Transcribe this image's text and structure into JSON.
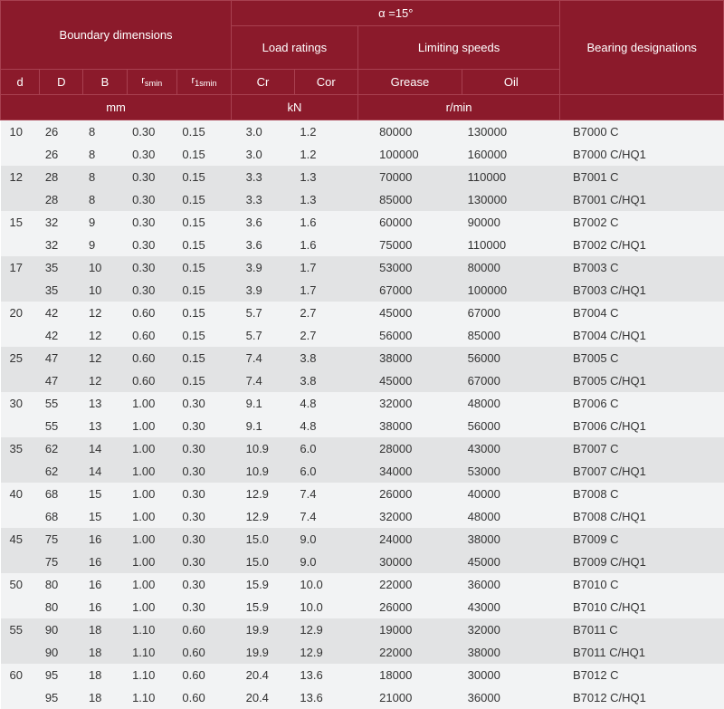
{
  "header": {
    "boundary": "Boundary dimensions",
    "alpha": "α =15°",
    "load": "Load ratings",
    "limit": "Limiting speeds",
    "designations": "Bearing designations",
    "d": "d",
    "D": "D",
    "B": "B",
    "rsmin": "rsmin",
    "r1smin": "r1smin",
    "cr": "Cr",
    "cor": "Cor",
    "grease": "Grease",
    "oil": "Oil",
    "mm": "mm",
    "kN": "kN",
    "rmin": "r/min"
  },
  "rows": [
    {
      "cls": "even",
      "d": "10",
      "D": "26",
      "B": "8",
      "r1": "0.30",
      "r2": "0.15",
      "cr": "3.0",
      "cor": "1.2",
      "gr": "80000",
      "oil": "130000",
      "des": "B7000 C"
    },
    {
      "cls": "even",
      "d": "",
      "D": "26",
      "B": "8",
      "r1": "0.30",
      "r2": "0.15",
      "cr": "3.0",
      "cor": "1.2",
      "gr": "100000",
      "oil": "160000",
      "des": "B7000  C/HQ1"
    },
    {
      "cls": "odd",
      "d": "12",
      "D": "28",
      "B": "8",
      "r1": "0.30",
      "r2": "0.15",
      "cr": "3.3",
      "cor": "1.3",
      "gr": "70000",
      "oil": "110000",
      "des": "B7001 C"
    },
    {
      "cls": "odd",
      "d": "",
      "D": "28",
      "B": "8",
      "r1": "0.30",
      "r2": "0.15",
      "cr": "3.3",
      "cor": "1.3",
      "gr": "85000",
      "oil": "130000",
      "des": "B7001  C/HQ1"
    },
    {
      "cls": "even",
      "d": "15",
      "D": "32",
      "B": "9",
      "r1": "0.30",
      "r2": "0.15",
      "cr": "3.6",
      "cor": "1.6",
      "gr": "60000",
      "oil": "90000",
      "des": "B7002 C"
    },
    {
      "cls": "even",
      "d": "",
      "D": "32",
      "B": "9",
      "r1": "0.30",
      "r2": "0.15",
      "cr": "3.6",
      "cor": "1.6",
      "gr": "75000",
      "oil": "110000",
      "des": "B7002  C/HQ1"
    },
    {
      "cls": "odd",
      "d": "17",
      "D": "35",
      "B": "10",
      "r1": "0.30",
      "r2": "0.15",
      "cr": "3.9",
      "cor": "1.7",
      "gr": "53000",
      "oil": "80000",
      "des": "B7003 C"
    },
    {
      "cls": "odd",
      "d": "",
      "D": "35",
      "B": "10",
      "r1": "0.30",
      "r2": "0.15",
      "cr": "3.9",
      "cor": "1.7",
      "gr": "67000",
      "oil": "100000",
      "des": "B7003  C/HQ1"
    },
    {
      "cls": "even",
      "d": "20",
      "D": "42",
      "B": "12",
      "r1": "0.60",
      "r2": "0.15",
      "cr": "5.7",
      "cor": "2.7",
      "gr": "45000",
      "oil": "67000",
      "des": "B7004 C"
    },
    {
      "cls": "even",
      "d": "",
      "D": "42",
      "B": "12",
      "r1": "0.60",
      "r2": "0.15",
      "cr": "5.7",
      "cor": "2.7",
      "gr": "56000",
      "oil": "85000",
      "des": "B7004  C/HQ1"
    },
    {
      "cls": "odd",
      "d": "25",
      "D": "47",
      "B": "12",
      "r1": "0.60",
      "r2": "0.15",
      "cr": "7.4",
      "cor": "3.8",
      "gr": "38000",
      "oil": "56000",
      "des": "B7005 C"
    },
    {
      "cls": "odd",
      "d": "",
      "D": "47",
      "B": "12",
      "r1": "0.60",
      "r2": "0.15",
      "cr": "7.4",
      "cor": "3.8",
      "gr": "45000",
      "oil": "67000",
      "des": "B7005  C/HQ1"
    },
    {
      "cls": "even",
      "d": "30",
      "D": "55",
      "B": "13",
      "r1": "1.00",
      "r2": "0.30",
      "cr": "9.1",
      "cor": "4.8",
      "gr": "32000",
      "oil": "48000",
      "des": "B7006 C"
    },
    {
      "cls": "even",
      "d": "",
      "D": "55",
      "B": "13",
      "r1": "1.00",
      "r2": "0.30",
      "cr": "9.1",
      "cor": "4.8",
      "gr": "38000",
      "oil": "56000",
      "des": "B7006  C/HQ1"
    },
    {
      "cls": "odd",
      "d": "35",
      "D": "62",
      "B": "14",
      "r1": "1.00",
      "r2": "0.30",
      "cr": "10.9",
      "cor": "6.0",
      "gr": "28000",
      "oil": "43000",
      "des": "B7007 C"
    },
    {
      "cls": "odd",
      "d": "",
      "D": "62",
      "B": "14",
      "r1": "1.00",
      "r2": "0.30",
      "cr": "10.9",
      "cor": "6.0",
      "gr": "34000",
      "oil": "53000",
      "des": "B7007  C/HQ1"
    },
    {
      "cls": "even",
      "d": "40",
      "D": "68",
      "B": "15",
      "r1": "1.00",
      "r2": "0.30",
      "cr": "12.9",
      "cor": "7.4",
      "gr": "26000",
      "oil": "40000",
      "des": "B7008 C"
    },
    {
      "cls": "even",
      "d": "",
      "D": "68",
      "B": "15",
      "r1": "1.00",
      "r2": "0.30",
      "cr": "12.9",
      "cor": "7.4",
      "gr": "32000",
      "oil": "48000",
      "des": "B7008  C/HQ1"
    },
    {
      "cls": "odd",
      "d": "45",
      "D": "75",
      "B": "16",
      "r1": "1.00",
      "r2": "0.30",
      "cr": "15.0",
      "cor": "9.0",
      "gr": "24000",
      "oil": "38000",
      "des": "B7009 C"
    },
    {
      "cls": "odd",
      "d": "",
      "D": "75",
      "B": "16",
      "r1": "1.00",
      "r2": "0.30",
      "cr": "15.0",
      "cor": "9.0",
      "gr": "30000",
      "oil": "45000",
      "des": "B7009  C/HQ1"
    },
    {
      "cls": "even",
      "d": "50",
      "D": "80",
      "B": "16",
      "r1": "1.00",
      "r2": "0.30",
      "cr": "15.9",
      "cor": "10.0",
      "gr": "22000",
      "oil": "36000",
      "des": "B7010 C"
    },
    {
      "cls": "even",
      "d": "",
      "D": "80",
      "B": "16",
      "r1": "1.00",
      "r2": "0.30",
      "cr": "15.9",
      "cor": "10.0",
      "gr": "26000",
      "oil": "43000",
      "des": "B7010  C/HQ1"
    },
    {
      "cls": "odd",
      "d": "55",
      "D": "90",
      "B": "18",
      "r1": "1.10",
      "r2": "0.60",
      "cr": "19.9",
      "cor": "12.9",
      "gr": "19000",
      "oil": "32000",
      "des": "B7011 C"
    },
    {
      "cls": "odd",
      "d": "",
      "D": "90",
      "B": "18",
      "r1": "1.10",
      "r2": "0.60",
      "cr": "19.9",
      "cor": "12.9",
      "gr": "22000",
      "oil": "38000",
      "des": "B7011  C/HQ1"
    },
    {
      "cls": "even",
      "d": "60",
      "D": "95",
      "B": "18",
      "r1": "1.10",
      "r2": "0.60",
      "cr": "20.4",
      "cor": "13.6",
      "gr": "18000",
      "oil": "30000",
      "des": "B7012 C"
    },
    {
      "cls": "even",
      "d": "",
      "D": "95",
      "B": "18",
      "r1": "1.10",
      "r2": "0.60",
      "cr": "20.4",
      "cor": "13.6",
      "gr": "21000",
      "oil": "36000",
      "des": "B7012  C/HQ1"
    }
  ]
}
